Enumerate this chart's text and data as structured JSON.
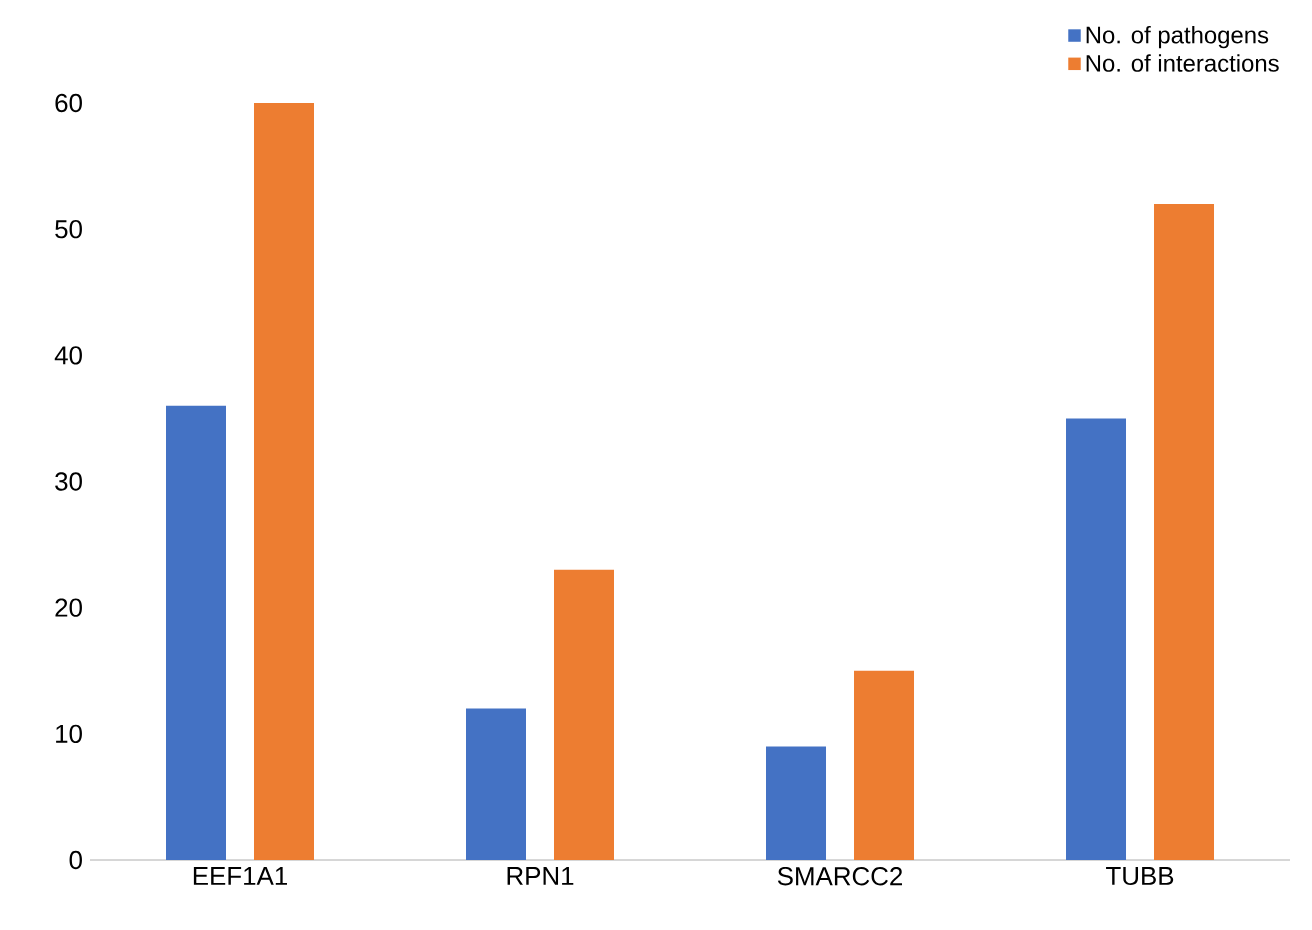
{
  "chart_data": {
    "type": "bar",
    "categories": [
      "EEF1A1",
      "RPN1",
      "SMARCC2",
      "TUBB"
    ],
    "series": [
      {
        "name": "No. of pathogens",
        "color": "#4472c4",
        "values": [
          36,
          12,
          9,
          35
        ]
      },
      {
        "name": "No. of interactions",
        "color": "#ed7d31",
        "values": [
          60,
          23,
          15,
          52
        ]
      }
    ],
    "ylim": [
      0,
      60
    ],
    "yticks": [
      0,
      10,
      20,
      30,
      40,
      50,
      60
    ],
    "grid": false,
    "legend": "top right"
  }
}
